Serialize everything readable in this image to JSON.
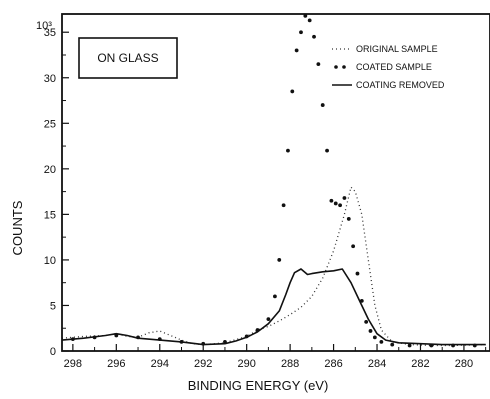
{
  "chart_data": {
    "type": "scatter",
    "title": "",
    "xlabel": "BINDING ENERGY (eV)",
    "ylabel": "COUNTS",
    "y_multiplier": "10³",
    "xlim": [
      298.5,
      278.8
    ],
    "ylim": [
      0,
      37
    ],
    "x_ticks": [
      "298",
      "296",
      "294",
      "292",
      "290",
      "288",
      "286",
      "284",
      "282",
      "280"
    ],
    "y_ticks": [
      "0",
      "5",
      "10",
      "15",
      "20",
      "25",
      "30",
      "35"
    ],
    "annotation": "ON GLASS",
    "legend": {
      "position": "top-right"
    },
    "series": [
      {
        "name": "ORIGINAL SAMPLE",
        "style": "dotted",
        "color": "#333333",
        "points": [
          [
            298.5,
            1.4
          ],
          [
            297.5,
            1.6
          ],
          [
            296.5,
            1.7
          ],
          [
            296,
            1.9
          ],
          [
            295.5,
            1.6
          ],
          [
            295,
            1.5
          ],
          [
            294.5,
            2.0
          ],
          [
            294,
            2.2
          ],
          [
            293.5,
            1.7
          ],
          [
            293,
            1.2
          ],
          [
            292.5,
            0.8
          ],
          [
            292,
            0.7
          ],
          [
            291,
            0.9
          ],
          [
            290,
            1.6
          ],
          [
            289.5,
            2.3
          ],
          [
            289,
            2.7
          ],
          [
            288.5,
            3.3
          ],
          [
            288,
            4.0
          ],
          [
            287.5,
            4.8
          ],
          [
            287,
            6.0
          ],
          [
            286.5,
            8.0
          ],
          [
            286,
            11.0
          ],
          [
            285.5,
            15.0
          ],
          [
            285.2,
            18.0
          ],
          [
            285,
            17.5
          ],
          [
            284.7,
            15.0
          ],
          [
            284.4,
            10.0
          ],
          [
            284.1,
            5.0
          ],
          [
            283.8,
            2.3
          ],
          [
            283.3,
            1.0
          ],
          [
            282.5,
            0.7
          ],
          [
            281.5,
            0.6
          ],
          [
            280.5,
            0.6
          ],
          [
            279,
            0.7
          ]
        ]
      },
      {
        "name": "COATED SAMPLE",
        "style": "markers",
        "color": "#111111",
        "points": [
          [
            298,
            1.3
          ],
          [
            297,
            1.5
          ],
          [
            296,
            1.7
          ],
          [
            295,
            1.5
          ],
          [
            294,
            1.3
          ],
          [
            293,
            1.0
          ],
          [
            292,
            0.8
          ],
          [
            291,
            1.0
          ],
          [
            290,
            1.6
          ],
          [
            289.5,
            2.3
          ],
          [
            289,
            3.5
          ],
          [
            288.7,
            6.0
          ],
          [
            288.5,
            10.0
          ],
          [
            288.3,
            16.0
          ],
          [
            288.1,
            22.0
          ],
          [
            287.9,
            28.5
          ],
          [
            287.7,
            33.0
          ],
          [
            287.5,
            35.0
          ],
          [
            287.3,
            36.8
          ],
          [
            287.1,
            36.3
          ],
          [
            286.9,
            34.5
          ],
          [
            286.7,
            31.5
          ],
          [
            286.5,
            27.0
          ],
          [
            286.3,
            22.0
          ],
          [
            286.1,
            16.5
          ],
          [
            285.9,
            16.2
          ],
          [
            285.7,
            16.0
          ],
          [
            285.5,
            16.8
          ],
          [
            285.3,
            14.5
          ],
          [
            285.1,
            11.5
          ],
          [
            284.9,
            8.5
          ],
          [
            284.7,
            5.5
          ],
          [
            284.5,
            3.2
          ],
          [
            284.3,
            2.2
          ],
          [
            284.1,
            1.5
          ],
          [
            283.8,
            1.0
          ],
          [
            283.3,
            0.7
          ],
          [
            282.5,
            0.6
          ],
          [
            281.5,
            0.6
          ],
          [
            280.5,
            0.6
          ],
          [
            279.5,
            0.6
          ]
        ]
      },
      {
        "name": "COATING REMOVED",
        "style": "solid",
        "color": "#111111",
        "points": [
          [
            298.5,
            1.2
          ],
          [
            297.5,
            1.4
          ],
          [
            296.5,
            1.7
          ],
          [
            296,
            1.9
          ],
          [
            295.5,
            1.7
          ],
          [
            295,
            1.4
          ],
          [
            294,
            1.2
          ],
          [
            293,
            1.0
          ],
          [
            292,
            0.7
          ],
          [
            291,
            0.8
          ],
          [
            290.5,
            1.1
          ],
          [
            290,
            1.5
          ],
          [
            289.5,
            2.1
          ],
          [
            289,
            3.0
          ],
          [
            288.5,
            4.4
          ],
          [
            288.2,
            6.2
          ],
          [
            288,
            7.5
          ],
          [
            287.8,
            8.6
          ],
          [
            287.5,
            9.0
          ],
          [
            287.2,
            8.4
          ],
          [
            287,
            8.5
          ],
          [
            286.5,
            8.7
          ],
          [
            286,
            8.8
          ],
          [
            285.6,
            9.0
          ],
          [
            285.2,
            7.5
          ],
          [
            284.8,
            5.5
          ],
          [
            284.4,
            3.5
          ],
          [
            284,
            1.9
          ],
          [
            283.6,
            1.2
          ],
          [
            283,
            0.9
          ],
          [
            282,
            0.8
          ],
          [
            281,
            0.7
          ],
          [
            280,
            0.7
          ],
          [
            279,
            0.7
          ]
        ]
      }
    ]
  }
}
